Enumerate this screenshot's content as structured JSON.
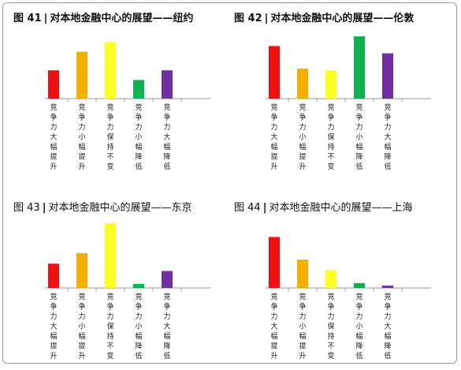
{
  "chart_data": [
    {
      "type": "bar",
      "fig_label": "图 41",
      "title": "对本地金融中心的展望——纽约",
      "title_bold": true,
      "categories": [
        "竞争力大幅提升",
        "竞争力小幅提升",
        "竞争力保持不变",
        "竞争力小幅降低",
        "竞争力大幅降低"
      ],
      "values": [
        35,
        58,
        70,
        23,
        35
      ],
      "colors": [
        "#ee1111",
        "#f5b000",
        "#ffff22",
        "#11b050",
        "#7030a0"
      ]
    },
    {
      "type": "bar",
      "fig_label": "图 42",
      "title": "对本地金融中心的展望——伦敦",
      "title_bold": true,
      "categories": [
        "竞争力大幅提升",
        "竞争力小幅提升",
        "竞争力保持不变",
        "竞争力小幅降低",
        "竞争力大幅降低"
      ],
      "values": [
        65,
        37,
        35,
        77,
        56
      ],
      "colors": [
        "#ee1111",
        "#f5b000",
        "#ffff22",
        "#11b050",
        "#7030a0"
      ]
    },
    {
      "type": "bar",
      "fig_label": "图 43",
      "title": "对本地金融中心的展望——东京",
      "title_bold": false,
      "categories": [
        "竞争力大幅提升",
        "竞争力小幅提升",
        "竞争力保持不变",
        "竞争力小幅降低",
        "竞争力大幅降低"
      ],
      "values": [
        30,
        43,
        80,
        5,
        21
      ],
      "colors": [
        "#ee1111",
        "#f5b000",
        "#ffff22",
        "#11b050",
        "#7030a0"
      ]
    },
    {
      "type": "bar",
      "fig_label": "图 44",
      "title": "对本地金融中心的展望——上海",
      "title_bold": false,
      "categories": [
        "竞争力大幅提升",
        "竞争力小幅提升",
        "竞争力保持不变",
        "竞争力小幅降低",
        "竞争力大幅降低"
      ],
      "values": [
        63,
        35,
        22,
        6,
        3
      ],
      "colors": [
        "#ee1111",
        "#f5b000",
        "#ffff22",
        "#11b050",
        "#7030a0"
      ]
    }
  ]
}
